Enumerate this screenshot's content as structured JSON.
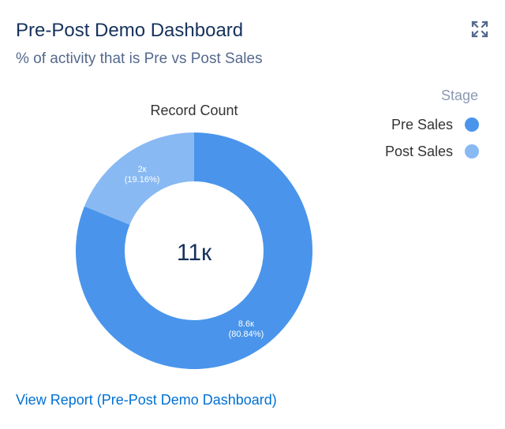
{
  "header": {
    "title": "Pre-Post Demo Dashboard",
    "subtitle": "% of activity that is Pre vs Post Sales",
    "expand_icon": "expand-icon"
  },
  "chart_data": {
    "type": "pie",
    "title": "Record Count",
    "center_label": "11к",
    "legend_title": "Stage",
    "legend_position": "top-right",
    "slices": [
      {
        "name": "Pre Sales",
        "value": 8600,
        "label": "8.6к",
        "percent": "(80.84%)",
        "color": "#4a95eb"
      },
      {
        "name": "Post Sales",
        "value": 2000,
        "label": "2к",
        "percent": "(19.16%)",
        "color": "#88b9f3"
      }
    ]
  },
  "footer": {
    "link_label": "View Report (Pre-Post Demo Dashboard)"
  }
}
